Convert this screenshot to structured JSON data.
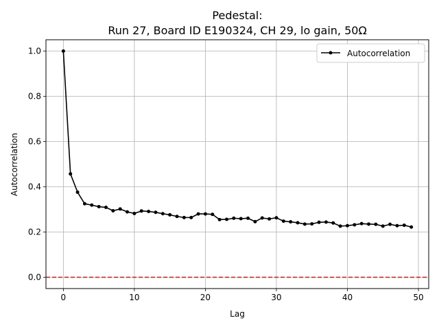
{
  "chart_data": {
    "type": "line",
    "title_line1": "Pedestal:",
    "title_line2": "Run 27, Board ID E190324, CH 29, lo gain, 50Ω",
    "xlabel": "Lag",
    "ylabel": "Autocorrelation",
    "xlim": [
      -2.45,
      51.45
    ],
    "ylim": [
      -0.05,
      1.05
    ],
    "xticks": [
      0,
      10,
      20,
      30,
      40,
      50
    ],
    "yticks": [
      0.0,
      0.2,
      0.4,
      0.6,
      0.8,
      1.0
    ],
    "grid": true,
    "legend_position": "top-right",
    "series": [
      {
        "name": "Autocorrelation",
        "color": "#000000",
        "marker": "circle",
        "x": [
          0,
          1,
          2,
          3,
          4,
          5,
          6,
          7,
          8,
          9,
          10,
          11,
          12,
          13,
          14,
          15,
          16,
          17,
          18,
          19,
          20,
          21,
          22,
          23,
          24,
          25,
          26,
          27,
          28,
          29,
          30,
          31,
          32,
          33,
          34,
          35,
          36,
          37,
          38,
          39,
          40,
          41,
          42,
          43,
          44,
          45,
          46,
          47,
          48,
          49
        ],
        "values": [
          1.0,
          0.457,
          0.376,
          0.325,
          0.319,
          0.312,
          0.309,
          0.294,
          0.302,
          0.289,
          0.282,
          0.293,
          0.291,
          0.287,
          0.281,
          0.276,
          0.269,
          0.264,
          0.264,
          0.28,
          0.28,
          0.278,
          0.255,
          0.256,
          0.261,
          0.259,
          0.261,
          0.246,
          0.262,
          0.258,
          0.263,
          0.248,
          0.245,
          0.241,
          0.235,
          0.236,
          0.243,
          0.244,
          0.24,
          0.226,
          0.228,
          0.232,
          0.237,
          0.235,
          0.234,
          0.226,
          0.234,
          0.228,
          0.23,
          0.222
        ]
      }
    ],
    "reference_line": {
      "y": 0.0,
      "color": "#ff0000",
      "style": "dashed"
    }
  }
}
